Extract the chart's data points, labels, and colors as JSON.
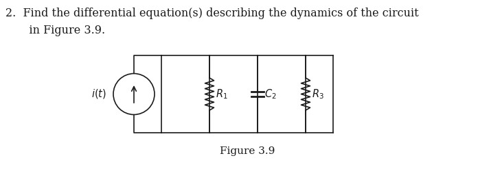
{
  "title_line1": "2.  Find the differential equation(s) describing the dynamics of the circuit",
  "title_line2": "    in Figure 3.9.",
  "figure_caption": "Figure 3.9",
  "bg_color": "#ffffff",
  "line_color": "#1a1a1a",
  "text_color": "#1a1a1a",
  "font_size_title": 11.5,
  "font_size_label": 10.5,
  "font_size_caption": 11
}
